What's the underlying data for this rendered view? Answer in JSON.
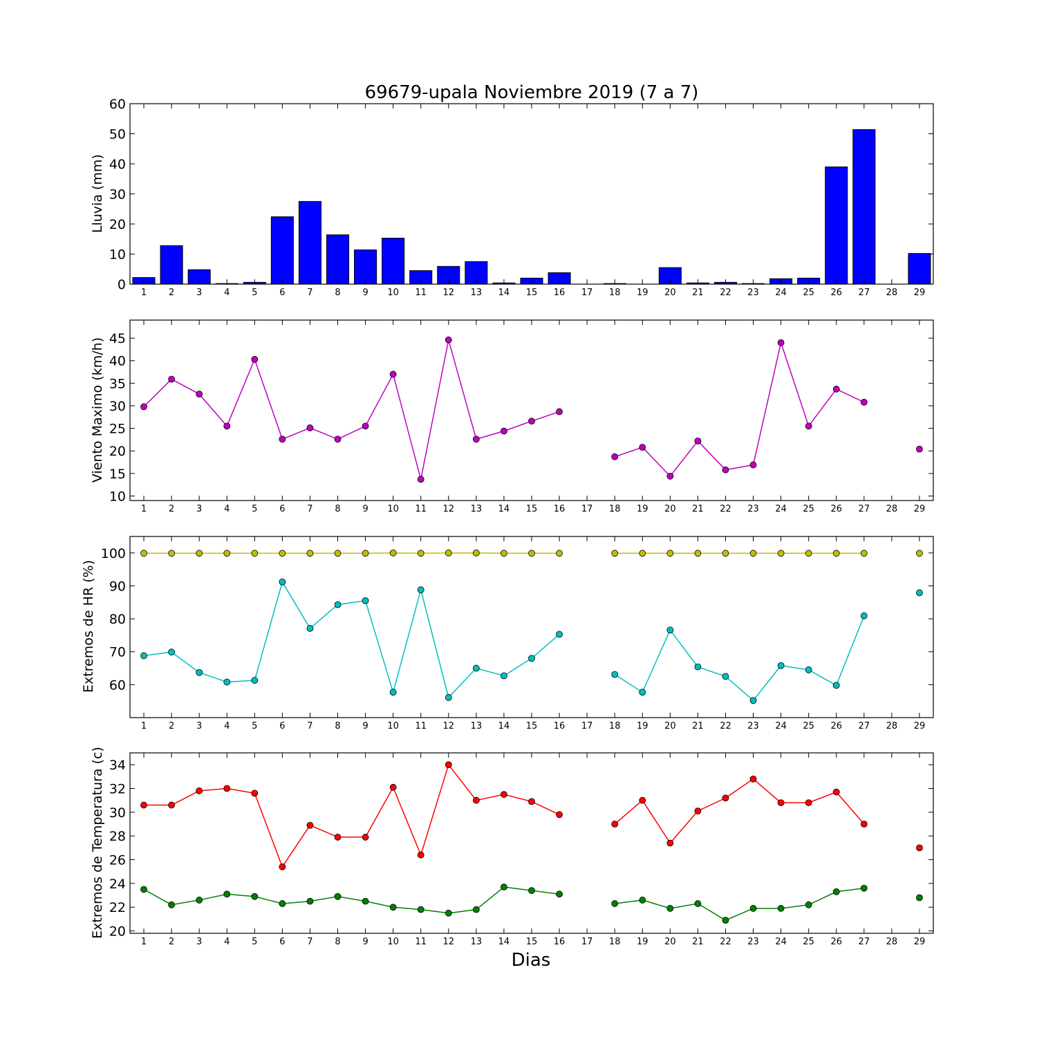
{
  "chart_data": [
    {
      "type": "bar",
      "title": "69679-upala Noviembre 2019  (7 a 7)",
      "ylabel": "Lluvia (mm)",
      "xlabel": "",
      "x": [
        1,
        2,
        3,
        4,
        5,
        6,
        7,
        8,
        9,
        10,
        11,
        12,
        13,
        14,
        15,
        16,
        17,
        18,
        19,
        20,
        21,
        22,
        23,
        24,
        25,
        26,
        27,
        28,
        29
      ],
      "values": [
        2.2,
        12.8,
        4.8,
        0.2,
        0.6,
        22.4,
        27.5,
        16.4,
        11.4,
        15.3,
        4.5,
        5.9,
        7.5,
        0.4,
        2.0,
        3.8,
        null,
        0.2,
        0.0,
        5.5,
        0.4,
        0.6,
        0.2,
        1.8,
        2.0,
        39.0,
        51.4,
        null,
        10.2
      ],
      "ylim": [
        0,
        60
      ],
      "yticks": [
        0,
        10,
        20,
        30,
        40,
        50,
        60
      ],
      "xlim": [
        0.5,
        29.5
      ],
      "grid": false,
      "colors": {
        "bar": "#0000ff"
      }
    },
    {
      "type": "line",
      "title": "",
      "ylabel": "Viento Maximo (km/h)",
      "xlabel": "",
      "x": [
        1,
        2,
        3,
        4,
        5,
        6,
        7,
        8,
        9,
        10,
        11,
        12,
        13,
        14,
        15,
        16,
        17,
        18,
        19,
        20,
        21,
        22,
        23,
        24,
        25,
        26,
        27,
        28,
        29
      ],
      "series": [
        {
          "color": "#bf00bf",
          "values": [
            29.8,
            35.9,
            32.6,
            25.5,
            40.3,
            22.6,
            25.1,
            22.6,
            25.5,
            37.0,
            13.7,
            44.6,
            22.6,
            24.4,
            26.6,
            28.7,
            null,
            18.7,
            20.8,
            14.4,
            22.2,
            15.8,
            16.9,
            44.0,
            25.5,
            33.7,
            30.8,
            null,
            20.4
          ]
        }
      ],
      "ylim": [
        9,
        49
      ],
      "yticks": [
        10,
        15,
        20,
        25,
        30,
        35,
        40,
        45
      ],
      "xlim": [
        0.5,
        29.5
      ],
      "grid": false
    },
    {
      "type": "line",
      "title": "",
      "ylabel": "Extremos de HR (%)",
      "xlabel": "",
      "x": [
        1,
        2,
        3,
        4,
        5,
        6,
        7,
        8,
        9,
        10,
        11,
        12,
        13,
        14,
        15,
        16,
        17,
        18,
        19,
        20,
        21,
        22,
        23,
        24,
        25,
        26,
        27,
        28,
        29
      ],
      "series": [
        {
          "color": "#bfbf00",
          "values": [
            99.9,
            99.9,
            99.9,
            99.9,
            99.9,
            99.9,
            99.9,
            99.9,
            99.9,
            100.0,
            99.9,
            100.0,
            100.0,
            99.9,
            99.9,
            99.9,
            null,
            99.9,
            99.9,
            99.9,
            99.9,
            99.9,
            99.9,
            99.9,
            99.9,
            99.9,
            99.9,
            null,
            99.9
          ]
        },
        {
          "color": "#00bfbf",
          "values": [
            68.8,
            69.9,
            63.7,
            60.8,
            61.3,
            91.2,
            77.1,
            84.3,
            85.5,
            57.7,
            88.8,
            56.1,
            65.0,
            62.7,
            68.0,
            75.3,
            null,
            63.1,
            57.7,
            76.6,
            65.4,
            62.5,
            55.2,
            65.8,
            64.5,
            59.8,
            80.9,
            null,
            87.9
          ]
        }
      ],
      "ylim": [
        50,
        105
      ],
      "yticks": [
        60,
        70,
        80,
        90,
        100
      ],
      "xlim": [
        0.5,
        29.5
      ],
      "grid": false
    },
    {
      "type": "line",
      "title": "",
      "ylabel": "Extremos de Temperatura (c)",
      "xlabel": "Dias",
      "x": [
        1,
        2,
        3,
        4,
        5,
        6,
        7,
        8,
        9,
        10,
        11,
        12,
        13,
        14,
        15,
        16,
        17,
        18,
        19,
        20,
        21,
        22,
        23,
        24,
        25,
        26,
        27,
        28,
        29
      ],
      "series": [
        {
          "color": "#ff0000",
          "values": [
            30.6,
            30.6,
            31.8,
            32.0,
            31.6,
            25.4,
            28.9,
            27.9,
            27.9,
            32.1,
            26.4,
            34.0,
            31.0,
            31.5,
            30.9,
            29.8,
            null,
            29.0,
            31.0,
            27.4,
            30.1,
            31.2,
            32.8,
            30.8,
            30.8,
            31.7,
            29.0,
            null,
            27.0
          ]
        },
        {
          "color": "#008000",
          "values": [
            23.5,
            22.2,
            22.6,
            23.1,
            22.9,
            22.3,
            22.5,
            22.9,
            22.5,
            22.0,
            21.8,
            21.5,
            21.8,
            23.7,
            23.4,
            23.1,
            null,
            22.3,
            22.6,
            21.9,
            22.3,
            20.9,
            21.9,
            21.9,
            22.2,
            23.3,
            23.6,
            null,
            22.8
          ]
        }
      ],
      "ylim": [
        19.8,
        35
      ],
      "yticks": [
        20,
        22,
        24,
        26,
        28,
        30,
        32,
        34
      ],
      "xlim": [
        0.5,
        29.5
      ],
      "grid": false
    }
  ]
}
